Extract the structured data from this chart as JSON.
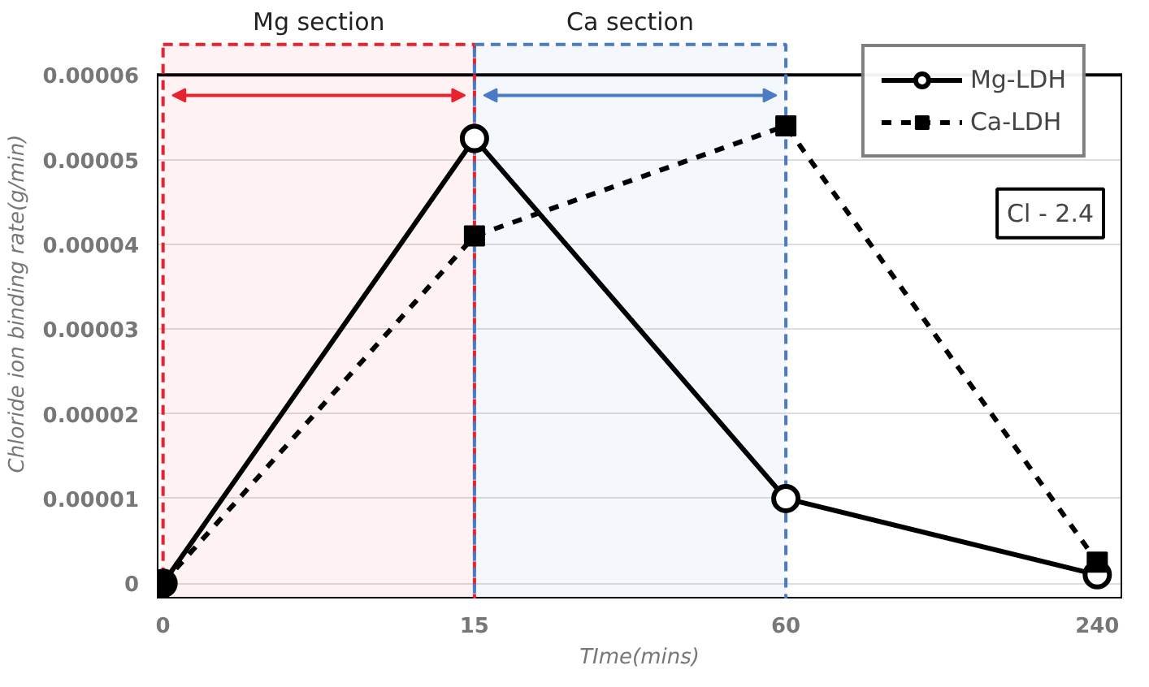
{
  "chart_data": {
    "type": "line",
    "xlabel": "TIme(mins)",
    "ylabel": "Chloride ion binding rate(g/min)",
    "categories": [
      "0",
      "15",
      "60",
      "240"
    ],
    "ylim": [
      0,
      6e-05
    ],
    "yticks": [
      {
        "value": 0,
        "label": "0"
      },
      {
        "value": 1e-05,
        "label": "0.00001"
      },
      {
        "value": 2e-05,
        "label": "0.00002"
      },
      {
        "value": 3e-05,
        "label": "0.00003"
      },
      {
        "value": 4e-05,
        "label": "0.00004"
      },
      {
        "value": 5e-05,
        "label": "0.00005"
      },
      {
        "value": 6e-05,
        "label": "0.00006"
      }
    ],
    "series": [
      {
        "name": "Mg-LDH",
        "color": "#000000",
        "values": [
          0,
          5.25e-05,
          1e-05,
          1e-06
        ],
        "marker": "circle",
        "line_style": "solid"
      },
      {
        "name": "Ca-LDH",
        "color": "#000000",
        "values": [
          0,
          4.1e-05,
          5.4e-05,
          2.5e-06
        ],
        "marker": "square",
        "line_style": "dashed"
      }
    ],
    "bands": [
      {
        "axis": "x",
        "from": "0",
        "to": "15",
        "label": "Mg section",
        "color": "#e8222e"
      },
      {
        "axis": "x",
        "from": "15",
        "to": "60",
        "label": "Ca section",
        "color": "#4a7bc4"
      }
    ],
    "annotations": [
      "Cl - 2.4"
    ],
    "grid": "y",
    "legend": "top right"
  }
}
